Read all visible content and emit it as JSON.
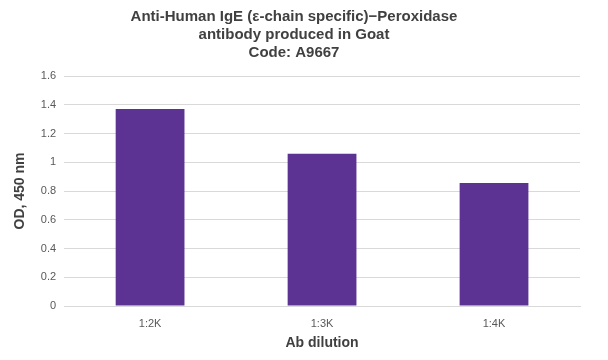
{
  "chart_data": {
    "type": "bar",
    "title": [
      "Anti-Human IgE (ε-chain specific)−Peroxidase",
      "antibody produced in Goat",
      "Code: A9667"
    ],
    "x_label": "Ab dilution",
    "y_label": "OD, 450 nm",
    "categories": [
      "1:2K",
      "1:3K",
      "1:4K"
    ],
    "values": [
      1.37,
      1.06,
      0.855
    ],
    "color": "#5c3292",
    "ylim": [
      0,
      1.6
    ],
    "yticks": [
      0,
      0.2,
      0.4,
      0.6,
      0.8,
      1,
      1.2,
      1.4,
      1.6
    ],
    "grid": true
  }
}
